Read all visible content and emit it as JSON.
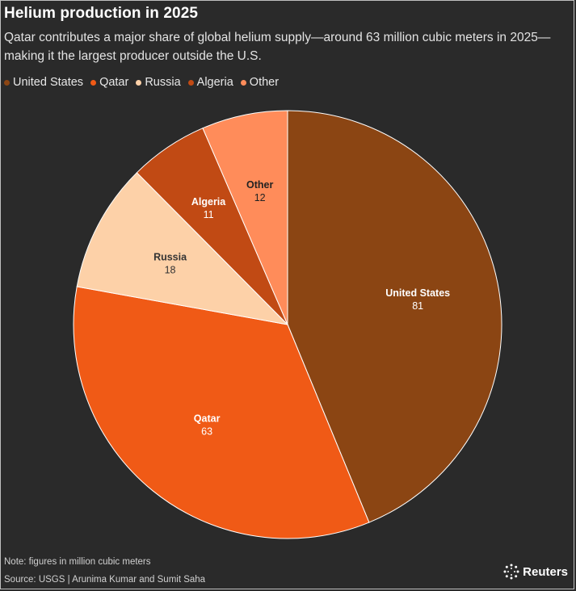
{
  "header": {
    "title": "Helium production in 2025",
    "subtitle": "Qatar contributes a major share of global helium supply—around 63 million cubic meters in 2025—making it the largest producer outside the U.S."
  },
  "legend": [
    {
      "label": "United States",
      "color": "#8b4513"
    },
    {
      "label": "Qatar",
      "color": "#f05a16"
    },
    {
      "label": "Russia",
      "color": "#fdd1a8"
    },
    {
      "label": "Algeria",
      "color": "#c14a14"
    },
    {
      "label": "Other",
      "color": "#ff8c5a"
    }
  ],
  "chart_data": {
    "type": "pie",
    "title": "Helium production in 2025",
    "unit": "million cubic meters",
    "slices": [
      {
        "label": "United States",
        "value": 81,
        "color": "#8b4513"
      },
      {
        "label": "Qatar",
        "value": 63,
        "color": "#f05a16"
      },
      {
        "label": "Russia",
        "value": 18,
        "color": "#fdd1a8",
        "text_color": "#333333"
      },
      {
        "label": "Algeria",
        "value": 11,
        "color": "#c14a14"
      },
      {
        "label": "Other",
        "value": 12,
        "color": "#ff8c5a",
        "text_color": "#222222"
      }
    ]
  },
  "footer": {
    "note": "Note: figures in million cubic meters",
    "source": "Source: USGS | Arunima Kumar and Sumit Saha",
    "brand": "Reuters"
  }
}
